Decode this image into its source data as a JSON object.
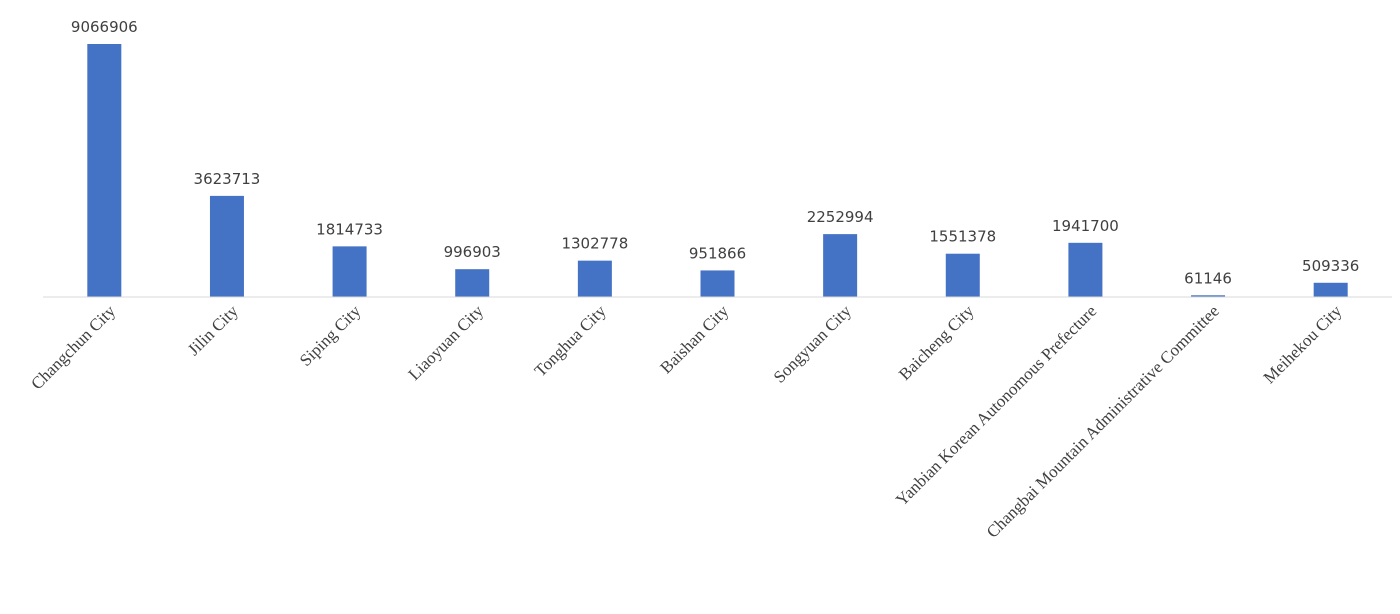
{
  "chart_data": {
    "type": "bar",
    "categories": [
      "Changchun City",
      "Jilin City",
      "Siping City",
      "Liaoyuan City",
      "Tonghua City",
      "Baishan City",
      "Songyuan City",
      "Baicheng City",
      "Yanbian Korean Autonomous Prefecture",
      "Changbai Mountain Administrative Committee",
      "Meihekou City"
    ],
    "values": [
      9066906,
      3623713,
      1814733,
      996903,
      1302778,
      951866,
      2252994,
      1551378,
      1941700,
      61146,
      509336
    ],
    "color": "#4472c4"
  }
}
